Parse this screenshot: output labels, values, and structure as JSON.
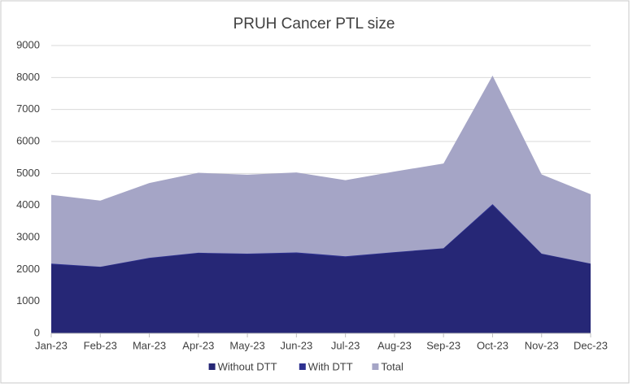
{
  "chart_data": {
    "type": "area",
    "title": "PRUH Cancer PTL size",
    "categories": [
      "Jan-23",
      "Feb-23",
      "Mar-23",
      "Apr-23",
      "May-23",
      "Jun-23",
      "Jul-23",
      "Aug-23",
      "Sep-23",
      "Oct-23",
      "Nov-23",
      "Dec-23"
    ],
    "series": [
      {
        "name": "Without DTT",
        "color": "#262776",
        "values": [
          2150,
          2070,
          2340,
          2500,
          2470,
          2500,
          2380,
          2520,
          2650,
          4000,
          2480,
          2170
        ]
      },
      {
        "name": "With DTT",
        "color": "#2e3190",
        "values": [
          2180,
          2080,
          2360,
          2520,
          2490,
          2530,
          2410,
          2540,
          2660,
          4040,
          2490,
          2180
        ]
      },
      {
        "name": "Total",
        "color": "#a5a5c6",
        "values": [
          4330,
          4150,
          4700,
          5020,
          4960,
          5030,
          4790,
          5060,
          5310,
          8060,
          4970,
          4350
        ]
      }
    ],
    "ylim": [
      0,
      9000
    ],
    "yticks": [
      0,
      1000,
      2000,
      3000,
      4000,
      5000,
      6000,
      7000,
      8000,
      9000
    ],
    "grid": true,
    "legend": "bottom"
  }
}
